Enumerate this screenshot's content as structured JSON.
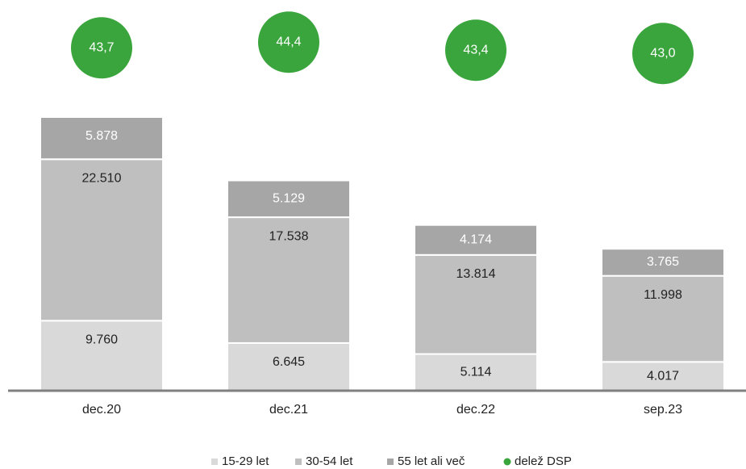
{
  "chart_data": {
    "type": "bar",
    "categories": [
      "dec.20",
      "dec.21",
      "dec.22",
      "sep.23"
    ],
    "stacked": true,
    "series": [
      {
        "name": "15-29 let",
        "color": "#d9d9d9",
        "values": [
          9760,
          6645,
          5114,
          4017
        ],
        "value_labels": [
          "9.760",
          "6.645",
          "5.114",
          "4.017"
        ]
      },
      {
        "name": "30-54 let",
        "color": "#bfbfbf",
        "values": [
          22510,
          17538,
          13814,
          11998
        ],
        "value_labels": [
          "22.510",
          "17.538",
          "13.814",
          "11.998"
        ]
      },
      {
        "name": "55 let ali več",
        "color": "#a6a6a6",
        "values": [
          5878,
          5129,
          4174,
          3765
        ],
        "value_labels": [
          "5.878",
          "5.129",
          "4.174",
          "3.765"
        ]
      },
      {
        "name": "delež DSP",
        "color": "#3aa53c",
        "type": "circle",
        "values": [
          43.7,
          44.4,
          43.4,
          43.0
        ],
        "value_labels": [
          "43,7",
          "44,4",
          "43,4",
          "43,0"
        ]
      }
    ]
  }
}
